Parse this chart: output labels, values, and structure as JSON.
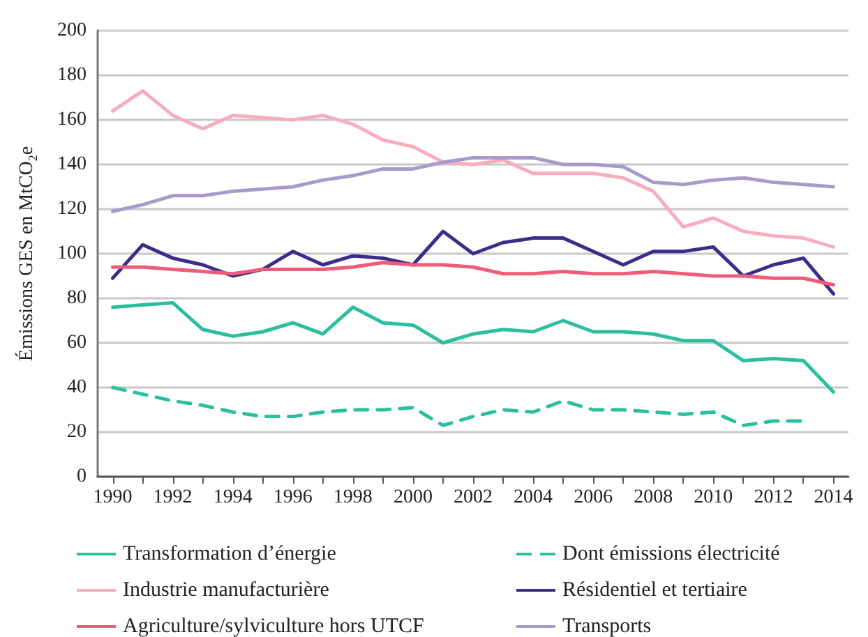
{
  "chart_data": {
    "type": "line",
    "ylabel": "Émissions GES en MtCO$_{2}$e",
    "x": [
      1990,
      1991,
      1992,
      1993,
      1994,
      1995,
      1996,
      1997,
      1998,
      1999,
      2000,
      2001,
      2002,
      2003,
      2004,
      2005,
      2006,
      2007,
      2008,
      2009,
      2010,
      2011,
      2012,
      2013,
      2014
    ],
    "xlim": [
      1989.5,
      2014.5
    ],
    "xticks": [
      1990,
      {
        "value": 1991,
        "label": null
      },
      1992,
      {
        "value": 1993,
        "label": null
      },
      1994,
      {
        "value": 1995,
        "label": null
      },
      1996,
      {
        "value": 1997,
        "label": null
      },
      1998,
      {
        "value": 1999,
        "label": null
      },
      2000,
      {
        "value": 2001,
        "label": null
      },
      2002,
      {
        "value": 2003,
        "label": null
      },
      2004,
      {
        "value": 2005,
        "label": null
      },
      2006,
      {
        "value": 2007,
        "label": null
      },
      2008,
      {
        "value": 2009,
        "label": null
      },
      2010,
      {
        "value": 2011,
        "label": null
      },
      2012,
      {
        "value": 2013,
        "label": null
      },
      2014
    ],
    "ylim": [
      0,
      200
    ],
    "yticks": [
      0,
      20,
      40,
      60,
      80,
      100,
      120,
      140,
      160,
      180,
      200
    ],
    "grid": "y",
    "legend": "bottom",
    "marker": "none",
    "series": [
      {
        "name": "Transformation d’énergie",
        "color": "#2bbf9f",
        "line_style": "solid",
        "values": [
          76,
          77,
          78,
          66,
          63,
          65,
          69,
          64,
          76,
          69,
          68,
          60,
          64,
          66,
          65,
          70,
          65,
          65,
          64,
          61,
          61,
          52,
          53,
          52,
          38
        ]
      },
      {
        "name": "Dont émissions électricité",
        "color": "#2bbf9f",
        "line_style": "dashed",
        "values": [
          40,
          37,
          34,
          32,
          29,
          27,
          27,
          29,
          30,
          30,
          31,
          23,
          27,
          30,
          29,
          34,
          30,
          30,
          29,
          28,
          29,
          23,
          25,
          25,
          null
        ]
      },
      {
        "name": "Industrie manufacturière",
        "color": "#f7adbd",
        "line_style": "solid",
        "values": [
          164,
          173,
          162,
          156,
          162,
          161,
          160,
          162,
          158,
          151,
          148,
          141,
          140,
          142,
          136,
          136,
          136,
          134,
          128,
          112,
          116,
          110,
          108,
          107,
          103
        ]
      },
      {
        "name": "Résidentiel et tertiaire",
        "color": "#3d2d8a",
        "line_style": "solid",
        "values": [
          89,
          104,
          98,
          95,
          90,
          93,
          101,
          95,
          99,
          98,
          95,
          110,
          100,
          105,
          107,
          107,
          101,
          95,
          101,
          101,
          103,
          90,
          95,
          98,
          82
        ]
      },
      {
        "name": "Agriculture/sylviculture hors UTCF",
        "color": "#ef5b78",
        "line_style": "solid",
        "values": [
          94,
          94,
          93,
          92,
          91,
          93,
          93,
          93,
          94,
          96,
          95,
          95,
          94,
          91,
          91,
          92,
          91,
          91,
          92,
          91,
          90,
          90,
          89,
          89,
          86
        ]
      },
      {
        "name": "Transports",
        "color": "#a89bcb",
        "line_style": "solid",
        "values": [
          119,
          122,
          126,
          126,
          128,
          129,
          130,
          133,
          135,
          138,
          138,
          141,
          143,
          143,
          143,
          140,
          140,
          139,
          132,
          131,
          133,
          134,
          132,
          131,
          130
        ]
      }
    ]
  }
}
